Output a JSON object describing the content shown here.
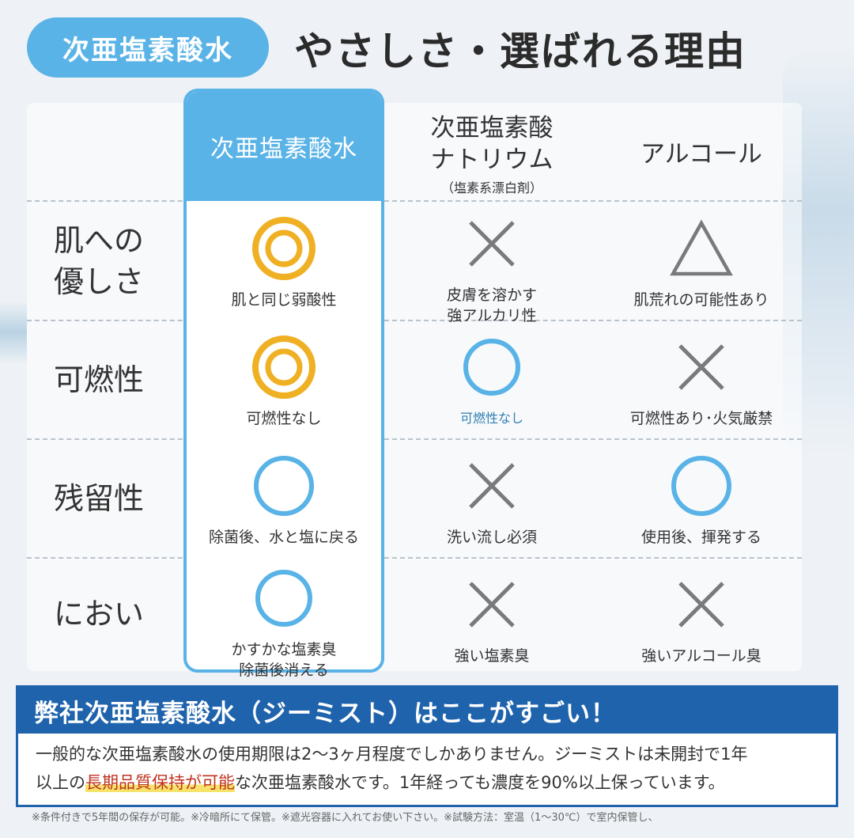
{
  "title": {
    "pill": "次亜塩素酸水",
    "main": "やさしさ・選ばれる理由"
  },
  "columns": {
    "col1": "次亜塩素酸水",
    "col2_line1": "次亜塩素酸",
    "col2_line2": "ナトリウム",
    "col2_sub": "（塩素系漂白剤）",
    "col3": "アルコール"
  },
  "rows": [
    {
      "label_line1": "肌への",
      "label_line2": "優しさ",
      "c1": {
        "symbol": "double-circle",
        "desc": "肌と同じ弱酸性"
      },
      "c2": {
        "symbol": "cross",
        "desc_line1": "皮膚を溶かす",
        "desc_line2": "強アルカリ性"
      },
      "c3": {
        "symbol": "triangle",
        "desc": "肌荒れの可能性あり"
      }
    },
    {
      "label_line1": "可燃性",
      "c1": {
        "symbol": "double-circle",
        "desc": "可燃性なし"
      },
      "c2": {
        "symbol": "circle",
        "desc": "可燃性なし"
      },
      "c3": {
        "symbol": "cross",
        "desc": "可燃性あり･火気厳禁"
      }
    },
    {
      "label_line1": "残留性",
      "c1": {
        "symbol": "circle",
        "desc": "除菌後、水と塩に戻る"
      },
      "c2": {
        "symbol": "cross",
        "desc": "洗い流し必須"
      },
      "c3": {
        "symbol": "circle",
        "desc": "使用後、揮発する"
      }
    },
    {
      "label_line1": "におい",
      "c1": {
        "symbol": "circle",
        "desc_line1": "かすかな塩素臭",
        "desc_line2": "除菌後消える"
      },
      "c2": {
        "symbol": "cross",
        "desc": "強い塩素臭"
      },
      "c3": {
        "symbol": "cross",
        "desc": "強いアルコール臭"
      }
    }
  ],
  "bottom": {
    "heading": "弊社次亜塩素酸水（ジーミスト）はここがすごい！",
    "line1": "一般的な次亜塩素酸水の使用期限は2〜3ヶ月程度でしかありません。ジーミストは未開封で1年",
    "line2_pre": "以上の",
    "line2_highlight": "長期品質保持が可能",
    "line2_post": "な次亜塩素酸水です。1年経っても濃度を90%以上保っています。"
  },
  "footnote": "※条件付きで5年間の保存が可能。※冷暗所にて保管。※遮光容器に入れてお使い下さい。※試験方法：室温（1〜30℃）で室内保管し、",
  "colors": {
    "accent_blue": "#5ab3e6",
    "gold": "#f0b023",
    "cross_gray": "#7a7a7a",
    "navy": "#1f63ad",
    "highlight_red": "#c0331f"
  }
}
